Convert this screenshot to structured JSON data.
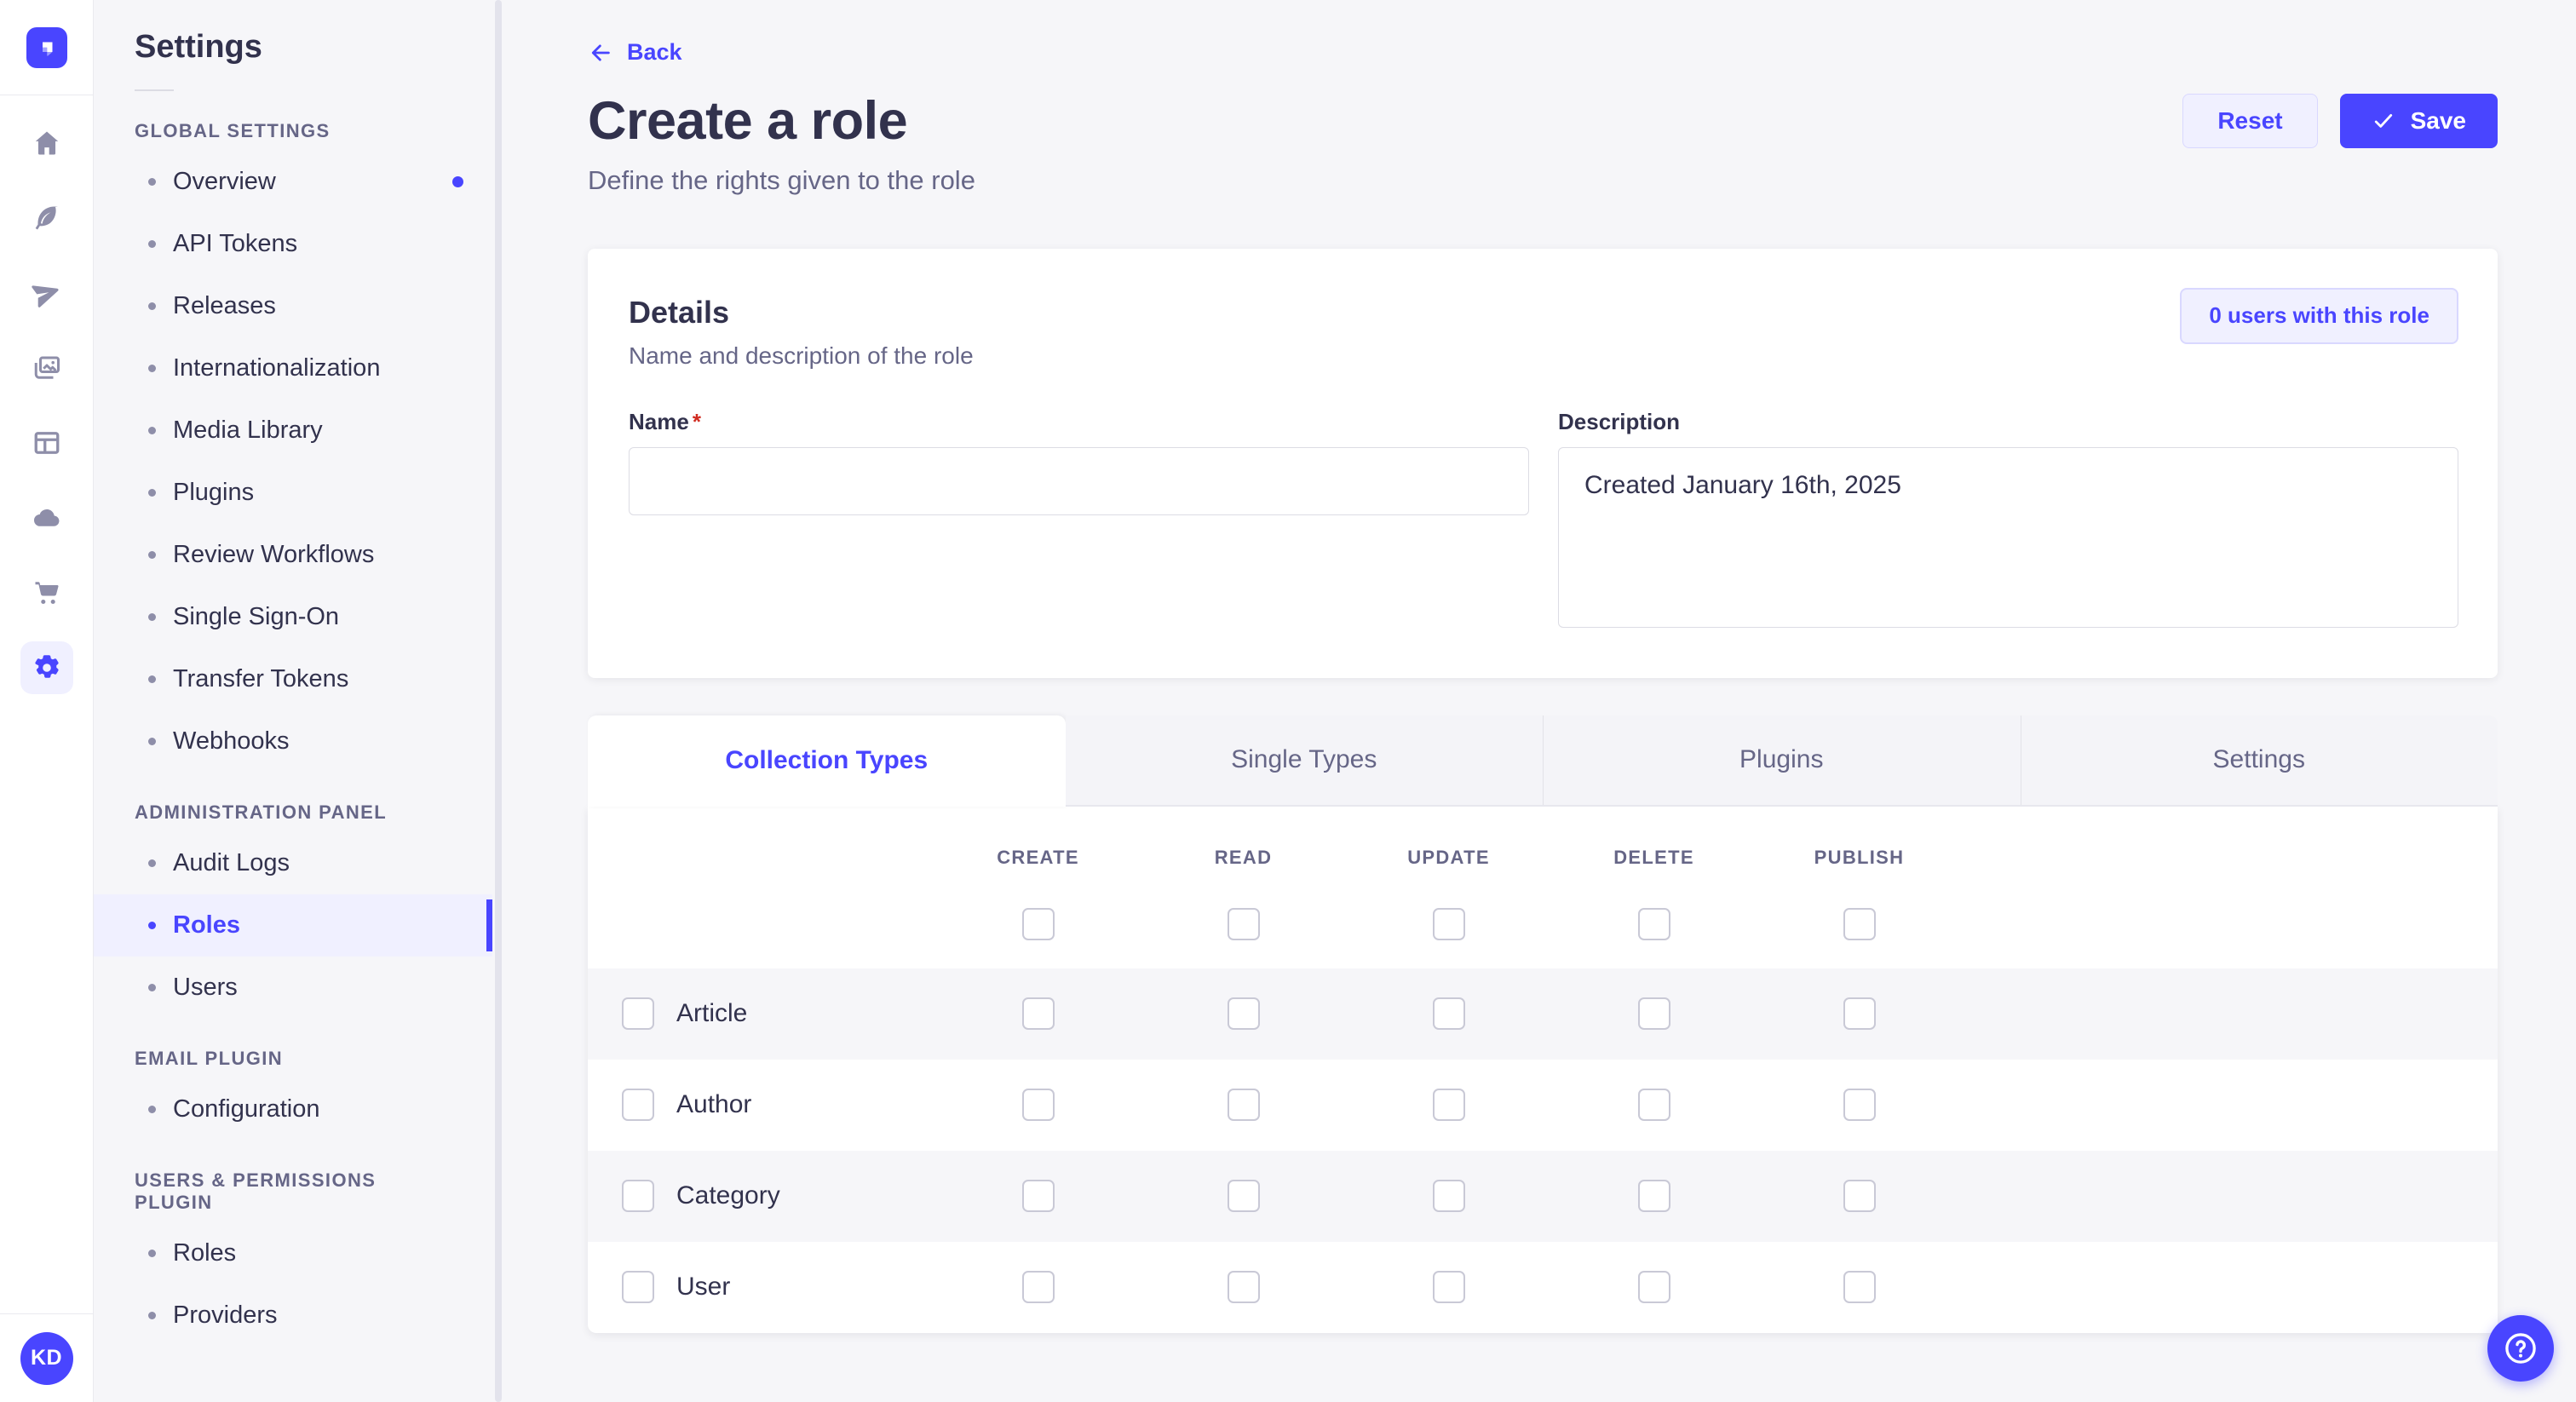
{
  "colors": {
    "primary": "#4945ff",
    "primary_light_bg": "#f0f0ff",
    "primary_border": "#d9d8ff",
    "text_dark": "#32324d",
    "text_gray": "#666687",
    "page_bg": "#f6f6f9",
    "required_asterisk": "#d02b20"
  },
  "icon_rail": {
    "logo_icon": "strapi-logo",
    "nav_icons": [
      {
        "name": "home-icon"
      },
      {
        "name": "feather-icon"
      },
      {
        "name": "paper-plane-icon"
      },
      {
        "name": "media-library-icon"
      },
      {
        "name": "layout-panel-icon"
      },
      {
        "name": "cloud-icon"
      },
      {
        "name": "shopping-cart-icon"
      },
      {
        "name": "gear-icon",
        "active": true
      }
    ],
    "avatar_initials": "KD"
  },
  "sidebar": {
    "title": "Settings",
    "sections": [
      {
        "label": "GLOBAL SETTINGS",
        "items": [
          {
            "label": "Overview",
            "notification": true
          },
          {
            "label": "API Tokens"
          },
          {
            "label": "Releases"
          },
          {
            "label": "Internationalization"
          },
          {
            "label": "Media Library"
          },
          {
            "label": "Plugins"
          },
          {
            "label": "Review Workflows"
          },
          {
            "label": "Single Sign-On"
          },
          {
            "label": "Transfer Tokens"
          },
          {
            "label": "Webhooks"
          }
        ]
      },
      {
        "label": "ADMINISTRATION PANEL",
        "items": [
          {
            "label": "Audit Logs"
          },
          {
            "label": "Roles",
            "active": true
          },
          {
            "label": "Users"
          }
        ]
      },
      {
        "label": "EMAIL PLUGIN",
        "items": [
          {
            "label": "Configuration"
          }
        ]
      },
      {
        "label": "USERS & PERMISSIONS PLUGIN",
        "items": [
          {
            "label": "Roles"
          },
          {
            "label": "Providers"
          }
        ]
      }
    ]
  },
  "header": {
    "back_label": "Back",
    "title": "Create a role",
    "subtitle": "Define the rights given to the role",
    "reset_label": "Reset",
    "save_label": "Save",
    "save_icon": "check-icon",
    "back_icon": "arrow-left-icon"
  },
  "details": {
    "title": "Details",
    "subtitle": "Name and description of the role",
    "users_button_label": "0 users with this role",
    "name_label": "Name",
    "name_required": "*",
    "name_value": "",
    "description_label": "Description",
    "description_value": "Created January 16th, 2025"
  },
  "tabs": [
    {
      "label": "Collection Types",
      "active": true
    },
    {
      "label": "Single Types",
      "active": false
    },
    {
      "label": "Plugins",
      "active": false
    },
    {
      "label": "Settings",
      "active": false
    }
  ],
  "permissions_table": {
    "columns": [
      "Create",
      "Read",
      "Update",
      "Delete",
      "Publish"
    ],
    "select_all_checkboxes": [
      false,
      false,
      false,
      false,
      false
    ],
    "rows": [
      {
        "label": "Article",
        "row_checkbox": false,
        "checks": [
          false,
          false,
          false,
          false,
          false
        ]
      },
      {
        "label": "Author",
        "row_checkbox": false,
        "checks": [
          false,
          false,
          false,
          false,
          false
        ]
      },
      {
        "label": "Category",
        "row_checkbox": false,
        "checks": [
          false,
          false,
          false,
          false,
          false
        ]
      },
      {
        "label": "User",
        "row_checkbox": false,
        "checks": [
          false,
          false,
          false,
          false,
          false
        ]
      }
    ]
  },
  "help_button": {
    "icon": "question-mark-icon"
  }
}
